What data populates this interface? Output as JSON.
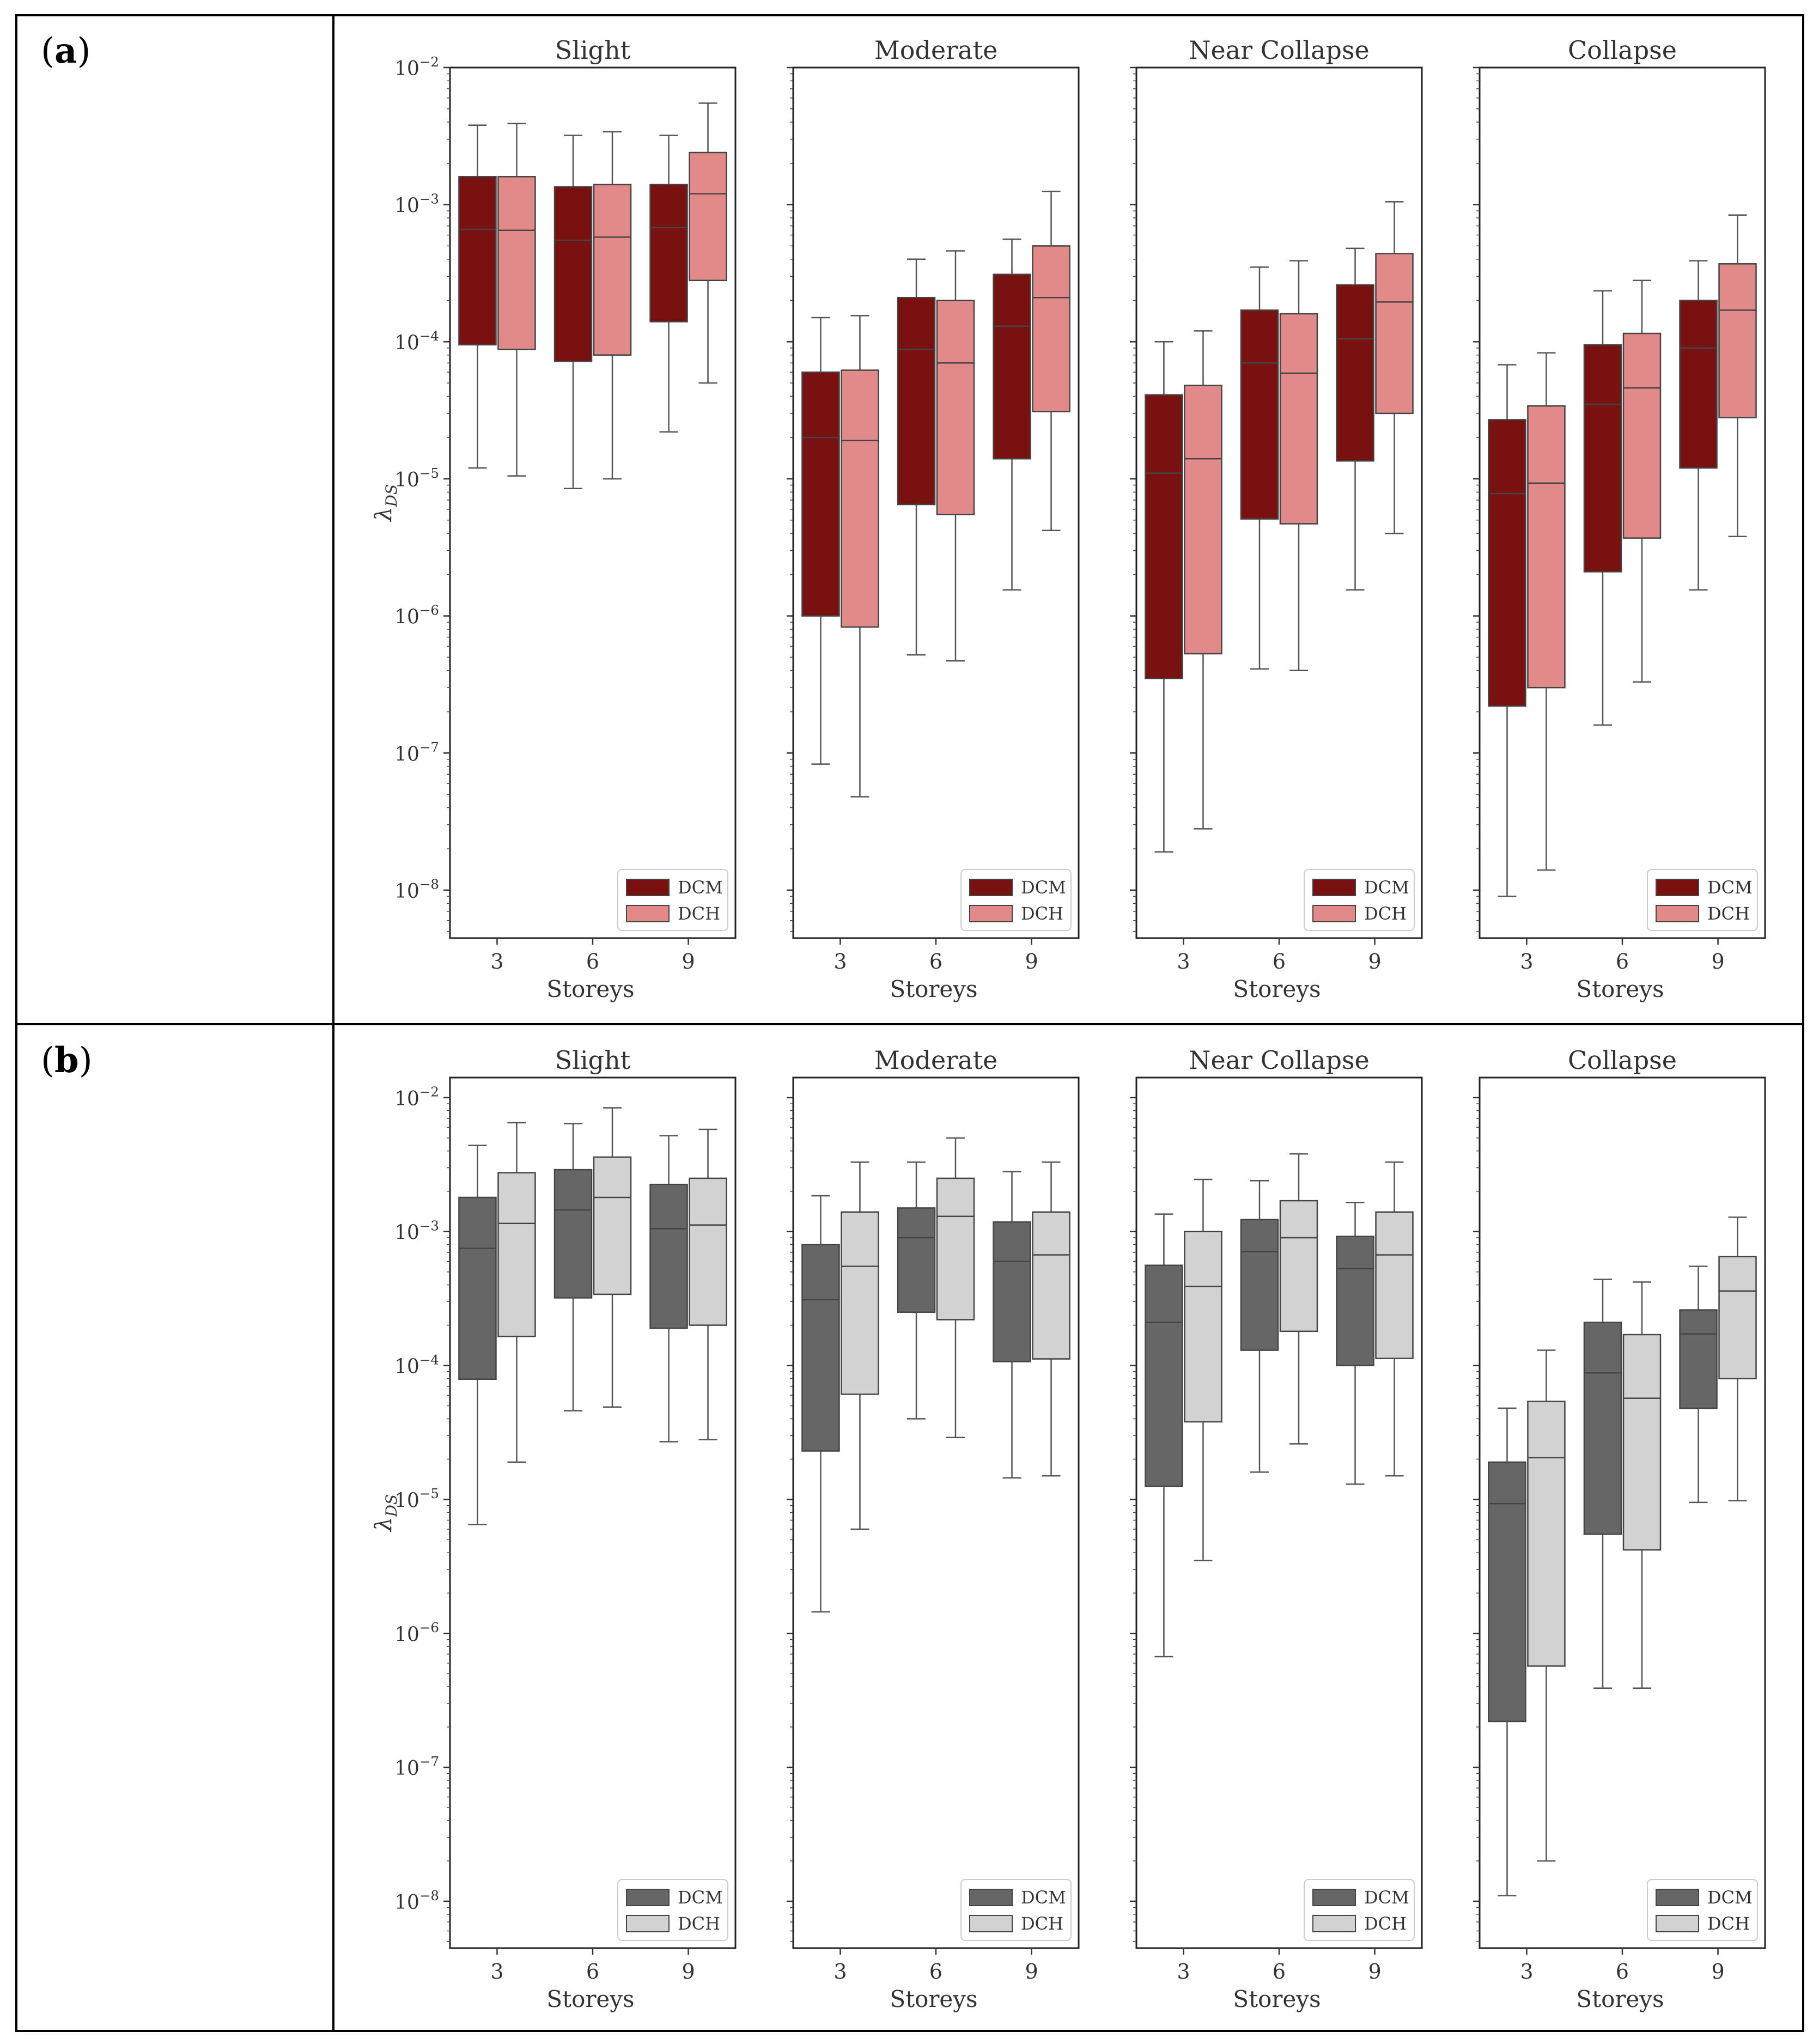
{
  "figure": {
    "panels": [
      {
        "label_open": "(",
        "label_letter": "a",
        "label_close": ")"
      },
      {
        "label_open": "(",
        "label_letter": "b",
        "label_close": ")"
      }
    ]
  },
  "colors": {
    "a": {
      "DCM": "#7a1111",
      "DCH": "#e28a8a"
    },
    "b": {
      "DCM": "#666666",
      "DCH": "#d2d2d2"
    }
  },
  "chart_data": [
    {
      "type": "box",
      "panel": "a",
      "ylabel": "λDS",
      "yscale": "log",
      "ylim": [
        5e-09,
        0.01
      ],
      "ytick_labels": [
        "10−8",
        "10−7",
        "10−6",
        "10−5",
        "10−4",
        "10−3",
        "10−2"
      ],
      "xlabel": "Storeys",
      "categories": [
        "3",
        "6",
        "9"
      ],
      "legend": [
        "DCM",
        "DCH"
      ],
      "subplots": [
        {
          "title": "Slight",
          "series": {
            "DCM": [
              {
                "whislo": 1.2e-05,
                "q1": 9.5e-05,
                "med": 0.00066,
                "q3": 0.0016,
                "whishi": 0.0038
              },
              {
                "whislo": 8.5e-06,
                "q1": 7.2e-05,
                "med": 0.00055,
                "q3": 0.00135,
                "whishi": 0.0032
              },
              {
                "whislo": 2.2e-05,
                "q1": 0.00014,
                "med": 0.00068,
                "q3": 0.0014,
                "whishi": 0.0032
              }
            ],
            "DCH": [
              {
                "whislo": 1.05e-05,
                "q1": 8.8e-05,
                "med": 0.00065,
                "q3": 0.0016,
                "whishi": 0.0039
              },
              {
                "whislo": 1e-05,
                "q1": 8e-05,
                "med": 0.00058,
                "q3": 0.0014,
                "whishi": 0.0034
              },
              {
                "whislo": 5e-05,
                "q1": 0.00028,
                "med": 0.0012,
                "q3": 0.0024,
                "whishi": 0.0055
              }
            ]
          }
        },
        {
          "title": "Moderate",
          "series": {
            "DCM": [
              {
                "whislo": 8.3e-08,
                "q1": 1e-06,
                "med": 2e-05,
                "q3": 6e-05,
                "whishi": 0.00015
              },
              {
                "whislo": 5.2e-07,
                "q1": 6.5e-06,
                "med": 8.8e-05,
                "q3": 0.00021,
                "whishi": 0.0004
              },
              {
                "whislo": 1.55e-06,
                "q1": 1.4e-05,
                "med": 0.00013,
                "q3": 0.00031,
                "whishi": 0.00056
              }
            ],
            "DCH": [
              {
                "whislo": 4.8e-08,
                "q1": 8.3e-07,
                "med": 1.9e-05,
                "q3": 6.2e-05,
                "whishi": 0.000155
              },
              {
                "whislo": 4.7e-07,
                "q1": 5.5e-06,
                "med": 7e-05,
                "q3": 0.0002,
                "whishi": 0.00046
              },
              {
                "whislo": 4.2e-06,
                "q1": 3.1e-05,
                "med": 0.00021,
                "q3": 0.0005,
                "whishi": 0.00125
              }
            ]
          }
        },
        {
          "title": "Near Collapse",
          "series": {
            "DCM": [
              {
                "whislo": 1.9e-08,
                "q1": 3.5e-07,
                "med": 1.1e-05,
                "q3": 4.1e-05,
                "whishi": 0.0001
              },
              {
                "whislo": 4.1e-07,
                "q1": 5.1e-06,
                "med": 7e-05,
                "q3": 0.00017,
                "whishi": 0.00035
              },
              {
                "whislo": 1.55e-06,
                "q1": 1.35e-05,
                "med": 0.000105,
                "q3": 0.00026,
                "whishi": 0.00048
              }
            ],
            "DCH": [
              {
                "whislo": 2.8e-08,
                "q1": 5.3e-07,
                "med": 1.4e-05,
                "q3": 4.8e-05,
                "whishi": 0.00012
              },
              {
                "whislo": 4e-07,
                "q1": 4.7e-06,
                "med": 5.9e-05,
                "q3": 0.00016,
                "whishi": 0.00039
              },
              {
                "whislo": 4e-06,
                "q1": 3e-05,
                "med": 0.000195,
                "q3": 0.00044,
                "whishi": 0.00105
              }
            ]
          }
        },
        {
          "title": "Collapse",
          "series": {
            "DCM": [
              {
                "whislo": 9e-09,
                "q1": 2.2e-07,
                "med": 7.8e-06,
                "q3": 2.7e-05,
                "whishi": 6.8e-05
              },
              {
                "whislo": 1.6e-07,
                "q1": 2.1e-06,
                "med": 3.5e-05,
                "q3": 9.5e-05,
                "whishi": 0.000235
              },
              {
                "whislo": 1.55e-06,
                "q1": 1.2e-05,
                "med": 9e-05,
                "q3": 0.0002,
                "whishi": 0.00039
              }
            ],
            "DCH": [
              {
                "whislo": 1.4e-08,
                "q1": 3e-07,
                "med": 9.3e-06,
                "q3": 3.4e-05,
                "whishi": 8.3e-05
              },
              {
                "whislo": 3.3e-07,
                "q1": 3.7e-06,
                "med": 4.6e-05,
                "q3": 0.000115,
                "whishi": 0.00028
              },
              {
                "whislo": 3.8e-06,
                "q1": 2.8e-05,
                "med": 0.00017,
                "q3": 0.00037,
                "whishi": 0.00084
              }
            ]
          }
        }
      ]
    },
    {
      "type": "box",
      "panel": "b",
      "ylabel": "λDS",
      "yscale": "log",
      "ylim": [
        5e-09,
        0.015
      ],
      "ytick_labels": [
        "10−8",
        "10−7",
        "10−6",
        "10−5",
        "10−4",
        "10−3",
        "10−2"
      ],
      "xlabel": "Storeys",
      "categories": [
        "3",
        "6",
        "9"
      ],
      "legend": [
        "DCM",
        "DCH"
      ],
      "subplots": [
        {
          "title": "Slight",
          "series": {
            "DCM": [
              {
                "whislo": 6.5e-06,
                "q1": 7.9e-05,
                "med": 0.00075,
                "q3": 0.0018,
                "whishi": 0.0044
              },
              {
                "whislo": 4.6e-05,
                "q1": 0.00032,
                "med": 0.00145,
                "q3": 0.0029,
                "whishi": 0.0064
              },
              {
                "whislo": 2.7e-05,
                "q1": 0.00019,
                "med": 0.00105,
                "q3": 0.00225,
                "whishi": 0.0052
              }
            ],
            "DCH": [
              {
                "whislo": 1.9e-05,
                "q1": 0.000165,
                "med": 0.00115,
                "q3": 0.00275,
                "whishi": 0.0065
              },
              {
                "whislo": 4.9e-05,
                "q1": 0.00034,
                "med": 0.0018,
                "q3": 0.0036,
                "whishi": 0.0084
              },
              {
                "whislo": 2.8e-05,
                "q1": 0.0002,
                "med": 0.00112,
                "q3": 0.0025,
                "whishi": 0.0058
              }
            ]
          }
        },
        {
          "title": "Moderate",
          "series": {
            "DCM": [
              {
                "whislo": 1.45e-06,
                "q1": 2.3e-05,
                "med": 0.00031,
                "q3": 0.0008,
                "whishi": 0.00185
              },
              {
                "whislo": 4e-05,
                "q1": 0.00025,
                "med": 0.0009,
                "q3": 0.0015,
                "whishi": 0.0033
              },
              {
                "whislo": 1.45e-05,
                "q1": 0.000107,
                "med": 0.0006,
                "q3": 0.00118,
                "whishi": 0.0028
              }
            ],
            "DCH": [
              {
                "whislo": 6e-06,
                "q1": 6.1e-05,
                "med": 0.00055,
                "q3": 0.0014,
                "whishi": 0.0033
              },
              {
                "whislo": 2.9e-05,
                "q1": 0.00022,
                "med": 0.0013,
                "q3": 0.0025,
                "whishi": 0.005
              },
              {
                "whislo": 1.5e-05,
                "q1": 0.000112,
                "med": 0.00067,
                "q3": 0.0014,
                "whishi": 0.0033
              }
            ]
          }
        },
        {
          "title": "Near Collapse",
          "series": {
            "DCM": [
              {
                "whislo": 6.7e-07,
                "q1": 1.25e-05,
                "med": 0.00021,
                "q3": 0.00056,
                "whishi": 0.00135
              },
              {
                "whislo": 1.6e-05,
                "q1": 0.00013,
                "med": 0.00071,
                "q3": 0.00123,
                "whishi": 0.0024
              },
              {
                "whislo": 1.3e-05,
                "q1": 0.0001,
                "med": 0.00053,
                "q3": 0.00092,
                "whishi": 0.00165
              }
            ],
            "DCH": [
              {
                "whislo": 3.5e-06,
                "q1": 3.8e-05,
                "med": 0.00039,
                "q3": 0.001,
                "whishi": 0.00245
              },
              {
                "whislo": 2.6e-05,
                "q1": 0.00018,
                "med": 0.0009,
                "q3": 0.0017,
                "whishi": 0.0038
              },
              {
                "whislo": 1.5e-05,
                "q1": 0.000113,
                "med": 0.00067,
                "q3": 0.0014,
                "whishi": 0.0033
              }
            ]
          }
        },
        {
          "title": "Collapse",
          "series": {
            "DCM": [
              {
                "whislo": 1.1e-08,
                "q1": 2.2e-07,
                "med": 9.3e-06,
                "q3": 1.9e-05,
                "whishi": 4.8e-05
              },
              {
                "whislo": 3.9e-07,
                "q1": 5.5e-06,
                "med": 8.8e-05,
                "q3": 0.00021,
                "whishi": 0.00044
              },
              {
                "whislo": 9.5e-06,
                "q1": 4.8e-05,
                "med": 0.000172,
                "q3": 0.00026,
                "whishi": 0.00055
              }
            ],
            "DCH": [
              {
                "whislo": 2e-08,
                "q1": 5.7e-07,
                "med": 2.05e-05,
                "q3": 5.4e-05,
                "whishi": 0.00013
              },
              {
                "whislo": 3.9e-07,
                "q1": 4.2e-06,
                "med": 5.7e-05,
                "q3": 0.00017,
                "whishi": 0.00042
              },
              {
                "whislo": 9.8e-06,
                "q1": 8e-05,
                "med": 0.00036,
                "q3": 0.00065,
                "whishi": 0.00128
              }
            ]
          }
        }
      ]
    }
  ]
}
